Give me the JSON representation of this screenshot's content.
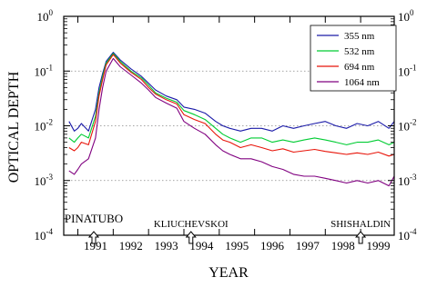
{
  "chart_data": {
    "type": "line",
    "title": "",
    "xlabel": "YEAR",
    "ylabel": "OPTICAL DEPTH",
    "x_scale": "linear",
    "y_scale": "log",
    "xlim": [
      1990.6,
      1999.95
    ],
    "ylim": [
      0.0001,
      1
    ],
    "x_tick_labels": [
      "1991",
      "1992",
      "1993",
      "1994",
      "1995",
      "1996",
      "1997",
      "1998",
      "1999"
    ],
    "y_ticks": [
      {
        "base": "10",
        "exp": "-4"
      },
      {
        "base": "10",
        "exp": "-3"
      },
      {
        "base": "10",
        "exp": "-2"
      },
      {
        "base": "10",
        "exp": "-1"
      },
      {
        "base": "10",
        "exp": "0"
      }
    ],
    "grid": "horizontal dotted at 10^-3, 10^-2, 10^-1",
    "legend_position": "top-right",
    "series": [
      {
        "name": "355 nm",
        "color": "#1a1aa8",
        "x": [
          1990.75,
          1990.9,
          1991.0,
          1991.1,
          1991.3,
          1991.5,
          1991.6,
          1991.7,
          1991.8,
          1992.0,
          1992.2,
          1992.5,
          1992.8,
          1993.0,
          1993.2,
          1993.5,
          1993.8,
          1994.0,
          1994.3,
          1994.6,
          1994.9,
          1995.1,
          1995.3,
          1995.6,
          1995.9,
          1996.2,
          1996.5,
          1996.8,
          1997.1,
          1997.4,
          1997.7,
          1998.0,
          1998.3,
          1998.6,
          1998.9,
          1999.2,
          1999.5,
          1999.8,
          1999.95
        ],
        "y": [
          0.012,
          0.008,
          0.009,
          0.011,
          0.008,
          0.02,
          0.05,
          0.09,
          0.15,
          0.22,
          0.16,
          0.11,
          0.08,
          0.06,
          0.045,
          0.035,
          0.03,
          0.022,
          0.02,
          0.017,
          0.012,
          0.01,
          0.009,
          0.008,
          0.009,
          0.009,
          0.008,
          0.01,
          0.009,
          0.01,
          0.011,
          0.012,
          0.01,
          0.009,
          0.011,
          0.01,
          0.012,
          0.009,
          0.012
        ]
      },
      {
        "name": "532 nm",
        "color": "#00cc33",
        "x": [
          1990.75,
          1990.9,
          1991.0,
          1991.1,
          1991.3,
          1991.5,
          1991.6,
          1991.7,
          1991.8,
          1992.0,
          1992.2,
          1992.5,
          1992.8,
          1993.0,
          1993.2,
          1993.5,
          1993.8,
          1994.0,
          1994.3,
          1994.6,
          1994.9,
          1995.1,
          1995.3,
          1995.6,
          1995.9,
          1996.2,
          1996.5,
          1996.8,
          1997.1,
          1997.4,
          1997.7,
          1998.0,
          1998.3,
          1998.6,
          1998.9,
          1999.2,
          1999.5,
          1999.8,
          1999.95
        ],
        "y": [
          0.006,
          0.005,
          0.006,
          0.007,
          0.006,
          0.015,
          0.04,
          0.08,
          0.14,
          0.21,
          0.15,
          0.1,
          0.075,
          0.055,
          0.04,
          0.032,
          0.027,
          0.019,
          0.016,
          0.013,
          0.009,
          0.007,
          0.006,
          0.005,
          0.006,
          0.006,
          0.005,
          0.0055,
          0.005,
          0.0055,
          0.006,
          0.0055,
          0.005,
          0.0045,
          0.005,
          0.005,
          0.0055,
          0.0045,
          0.005
        ]
      },
      {
        "name": "694 nm",
        "color": "#e8150a",
        "x": [
          1990.75,
          1990.9,
          1991.0,
          1991.1,
          1991.3,
          1991.5,
          1991.6,
          1991.7,
          1991.8,
          1992.0,
          1992.2,
          1992.5,
          1992.8,
          1993.0,
          1993.2,
          1993.5,
          1993.8,
          1994.0,
          1994.3,
          1994.6,
          1994.9,
          1995.1,
          1995.3,
          1995.6,
          1995.9,
          1996.2,
          1996.5,
          1996.8,
          1997.1,
          1997.4,
          1997.7,
          1998.0,
          1998.3,
          1998.6,
          1998.9,
          1999.2,
          1999.5,
          1999.8,
          1999.95
        ],
        "y": [
          0.004,
          0.0035,
          0.004,
          0.005,
          0.0045,
          0.012,
          0.035,
          0.07,
          0.13,
          0.2,
          0.14,
          0.095,
          0.07,
          0.05,
          0.038,
          0.03,
          0.025,
          0.016,
          0.013,
          0.011,
          0.007,
          0.0055,
          0.005,
          0.004,
          0.0045,
          0.004,
          0.0035,
          0.0038,
          0.0033,
          0.0035,
          0.0037,
          0.0034,
          0.0032,
          0.003,
          0.0032,
          0.003,
          0.0033,
          0.0028,
          0.003
        ]
      },
      {
        "name": "1064 nm",
        "color": "#800080",
        "x": [
          1990.75,
          1990.9,
          1991.0,
          1991.1,
          1991.3,
          1991.5,
          1991.6,
          1991.7,
          1991.8,
          1992.0,
          1992.2,
          1992.5,
          1992.8,
          1993.0,
          1993.2,
          1993.5,
          1993.8,
          1994.0,
          1994.3,
          1994.6,
          1994.9,
          1995.1,
          1995.3,
          1995.6,
          1995.9,
          1996.2,
          1996.5,
          1996.8,
          1997.1,
          1997.4,
          1997.7,
          1998.0,
          1998.3,
          1998.6,
          1998.9,
          1999.2,
          1999.5,
          1999.8,
          1999.95
        ],
        "y": [
          0.0015,
          0.0013,
          0.0016,
          0.002,
          0.0025,
          0.006,
          0.02,
          0.05,
          0.1,
          0.17,
          0.12,
          0.085,
          0.06,
          0.045,
          0.033,
          0.026,
          0.021,
          0.012,
          0.009,
          0.007,
          0.0045,
          0.0035,
          0.003,
          0.0025,
          0.0025,
          0.0022,
          0.0018,
          0.0016,
          0.0013,
          0.0012,
          0.0012,
          0.0011,
          0.001,
          0.0009,
          0.001,
          0.0009,
          0.001,
          0.0008,
          0.0012
        ]
      }
    ],
    "annotations": [
      {
        "text": "PINATUBO",
        "x": 1991.45
      },
      {
        "text": "KLIUCHEVSKOI",
        "x": 1994.2
      },
      {
        "text": "SHISHALDIN",
        "x": 1999.0
      }
    ]
  }
}
